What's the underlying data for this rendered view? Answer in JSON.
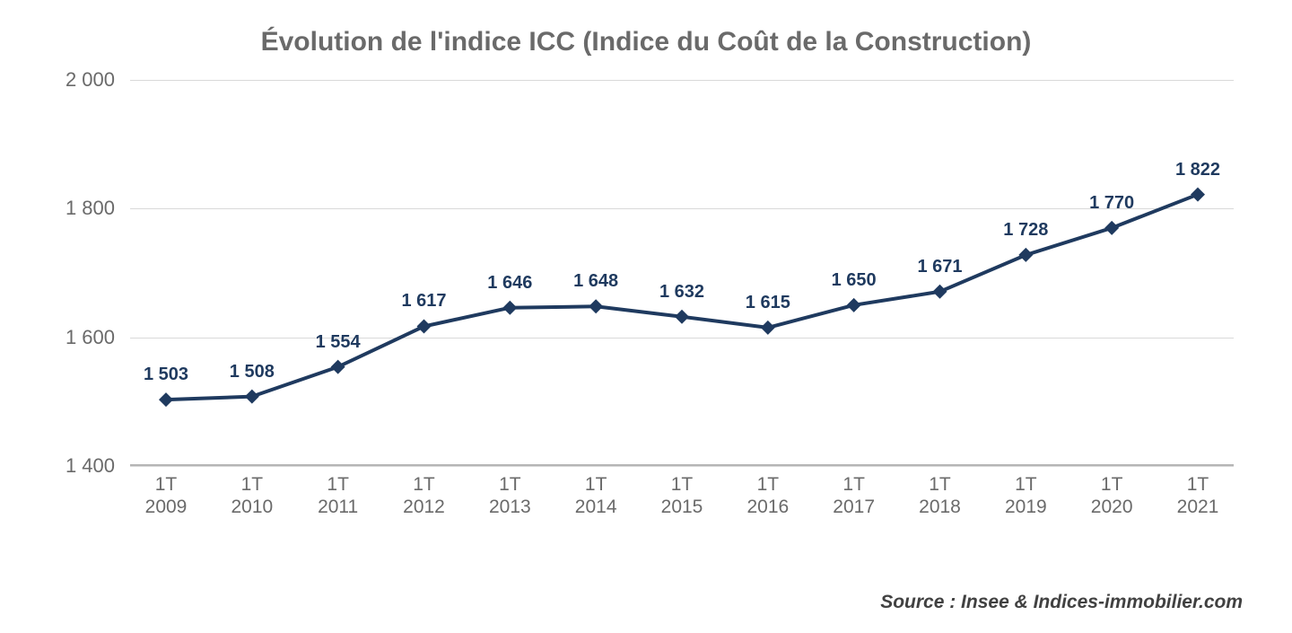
{
  "chart": {
    "type": "line",
    "title": "Évolution de l'indice ICC (Indice du Coût de la Construction)",
    "title_fontsize": 30,
    "title_color": "#6a6a6a",
    "background_color": "#ffffff",
    "line_color": "#1f3a5f",
    "marker_color": "#1f3a5f",
    "label_color": "#1f3a5f",
    "axis_text_color": "#6a6a6a",
    "grid_color": "#d9d9d9",
    "axis_line_color": "#b5b5b5",
    "line_width": 4,
    "marker_size": 8,
    "marker_shape": "diamond",
    "ylim": [
      1400,
      2000
    ],
    "yticks": [
      1400,
      1600,
      1800,
      2000
    ],
    "ytick_labels": [
      "1 400",
      "1 600",
      "1 800",
      "2 000"
    ],
    "categories": [
      "1T 2009",
      "1T 2010",
      "1T 2011",
      "1T 2012",
      "1T 2013",
      "1T 2014",
      "1T 2015",
      "1T 2016",
      "1T 2017",
      "1T 2018",
      "1T 2019",
      "1T 2020",
      "1T 2021"
    ],
    "x_labels_line1": [
      "1T",
      "1T",
      "1T",
      "1T",
      "1T",
      "1T",
      "1T",
      "1T",
      "1T",
      "1T",
      "1T",
      "1T",
      "1T"
    ],
    "x_labels_line2": [
      "2009",
      "2010",
      "2011",
      "2012",
      "2013",
      "2014",
      "2015",
      "2016",
      "2017",
      "2018",
      "2019",
      "2020",
      "2021"
    ],
    "values": [
      1503,
      1508,
      1554,
      1617,
      1646,
      1648,
      1632,
      1615,
      1650,
      1671,
      1728,
      1770,
      1822
    ],
    "value_labels": [
      "1 503",
      "1 508",
      "1 554",
      "1 617",
      "1 646",
      "1 648",
      "1 632",
      "1 615",
      "1 650",
      "1 671",
      "1 728",
      "1 770",
      "1 822"
    ],
    "label_fontsize": 20,
    "axis_fontsize": 22
  },
  "source": "Source : Insee & Indices-immobilier.com"
}
